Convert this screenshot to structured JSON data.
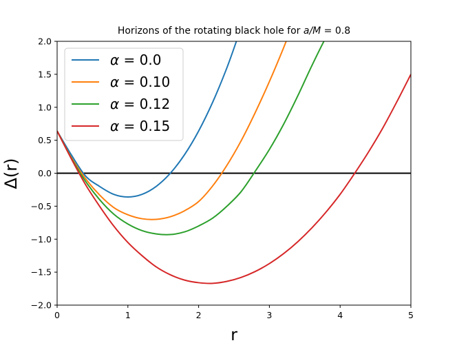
{
  "chart_data": {
    "type": "line",
    "title": "Horizons of the rotating black hole for a/M = 0.8",
    "title_prefix": "Horizons of the rotating black hole for ",
    "title_math": "a/M",
    "title_suffix": " = 0.8",
    "xlabel": "r",
    "ylabel": "Δ(r)",
    "xlim": [
      0,
      5
    ],
    "ylim": [
      -2.0,
      2.0
    ],
    "xticks": [
      0,
      1,
      2,
      3,
      4,
      5
    ],
    "xtick_labels": [
      "0",
      "1",
      "2",
      "3",
      "4",
      "5"
    ],
    "yticks": [
      -2.0,
      -1.5,
      -1.0,
      -0.5,
      0.0,
      0.5,
      1.0,
      1.5,
      2.0
    ],
    "ytick_labels": [
      "−2.0",
      "−1.5",
      "−1.0",
      "−0.5",
      "0.0",
      "0.5",
      "1.0",
      "1.5",
      "2.0"
    ],
    "grid": false,
    "legend_position": "upper-left",
    "reference_line": {
      "y": 0.0,
      "color": "#000000"
    },
    "series": [
      {
        "name": "α = 0.0",
        "legend_symbol": "α",
        "legend_value": "= 0.0",
        "color": "#1f77b4",
        "x": [
          0.0,
          0.2,
          0.4,
          0.6,
          0.8,
          1.0,
          1.2,
          1.4,
          1.6,
          1.8,
          2.0,
          2.2,
          2.4,
          2.55
        ],
        "y": [
          0.64,
          0.28,
          -0.04,
          -0.2,
          -0.32,
          -0.36,
          -0.32,
          -0.2,
          0.0,
          0.28,
          0.64,
          1.08,
          1.6,
          2.05
        ]
      },
      {
        "name": "α = 0.10",
        "legend_symbol": "α",
        "legend_value": "= 0.10",
        "color": "#ff7f0e",
        "x": [
          0.0,
          0.2,
          0.4,
          0.6,
          0.8,
          1.0,
          1.2,
          1.4,
          1.6,
          1.8,
          2.0,
          2.2,
          2.4,
          2.6,
          2.8,
          3.0,
          3.2,
          3.3
        ],
        "y": [
          0.64,
          0.24,
          -0.08,
          -0.33,
          -0.52,
          -0.63,
          -0.69,
          -0.7,
          -0.66,
          -0.57,
          -0.43,
          -0.19,
          0.12,
          0.49,
          0.92,
          1.39,
          1.9,
          2.18
        ]
      },
      {
        "name": "α = 0.12",
        "legend_symbol": "α",
        "legend_value": "= 0.12",
        "color": "#2ca02c",
        "x": [
          0.0,
          0.2,
          0.4,
          0.6,
          0.8,
          1.0,
          1.2,
          1.4,
          1.6,
          1.8,
          2.0,
          2.2,
          2.4,
          2.6,
          2.8,
          3.0,
          3.2,
          3.4,
          3.6,
          3.8,
          3.9
        ],
        "y": [
          0.64,
          0.23,
          -0.12,
          -0.4,
          -0.62,
          -0.77,
          -0.87,
          -0.92,
          -0.93,
          -0.89,
          -0.8,
          -0.68,
          -0.5,
          -0.28,
          0.03,
          0.36,
          0.74,
          1.17,
          1.63,
          2.06,
          2.22
        ]
      },
      {
        "name": "α = 0.15",
        "legend_symbol": "α",
        "legend_value": "= 0.15",
        "color": "#d62728",
        "x": [
          0.0,
          0.2,
          0.4,
          0.6,
          0.8,
          1.0,
          1.2,
          1.4,
          1.6,
          1.8,
          2.0,
          2.2,
          2.4,
          2.6,
          2.8,
          3.0,
          3.2,
          3.4,
          3.6,
          3.8,
          4.0,
          4.2,
          4.4,
          4.6,
          4.8,
          5.0
        ],
        "y": [
          0.64,
          0.22,
          -0.17,
          -0.5,
          -0.8,
          -1.05,
          -1.25,
          -1.42,
          -1.54,
          -1.62,
          -1.66,
          -1.67,
          -1.64,
          -1.58,
          -1.49,
          -1.37,
          -1.22,
          -1.04,
          -0.83,
          -0.59,
          -0.32,
          -0.01,
          0.32,
          0.68,
          1.08,
          1.5
        ]
      }
    ]
  }
}
